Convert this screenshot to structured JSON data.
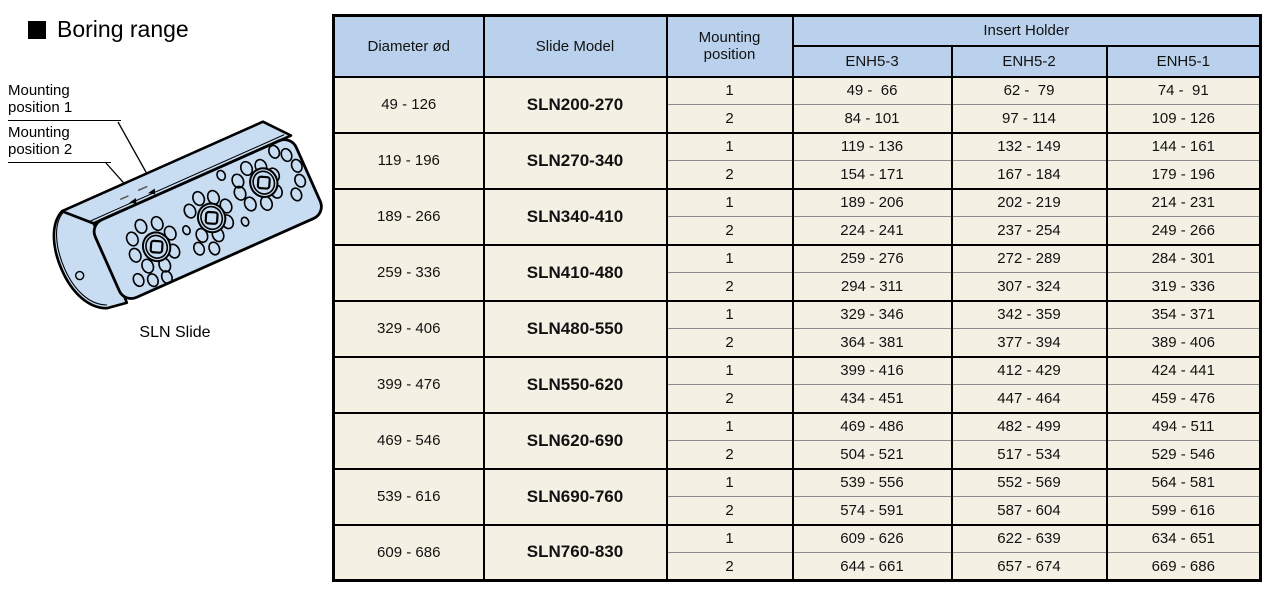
{
  "page": {
    "title": "Boring range"
  },
  "illustration": {
    "caption": "SLN Slide",
    "label_1": "Mounting position 1",
    "label_2": "Mounting position 2",
    "body_color": "#c9ddf2",
    "outline_color": "#000000"
  },
  "table": {
    "headers": {
      "diameter": "Diameter ød",
      "slide_model": "Slide Model",
      "mounting_position": "Mounting position",
      "insert_holder": "Insert Holder",
      "insert_columns": [
        "ENH5-3",
        "ENH5-2",
        "ENH5-1"
      ]
    },
    "colors": {
      "header_bg": "#b9d1ec",
      "model_bg": "#d6eaf8",
      "cell_bg": "#f4f1e4"
    },
    "rows": [
      {
        "diameter": "49 - 126",
        "model": "SLN200-270",
        "positions": [
          {
            "label": "1",
            "values": [
              "49 -  66",
              "62 -  79",
              "74 -  91"
            ]
          },
          {
            "label": "2",
            "values": [
              "84 - 101",
              "97 - 114",
              "109 - 126"
            ]
          }
        ]
      },
      {
        "diameter": "119 - 196",
        "model": "SLN270-340",
        "positions": [
          {
            "label": "1",
            "values": [
              "119 - 136",
              "132 - 149",
              "144 - 161"
            ]
          },
          {
            "label": "2",
            "values": [
              "154 - 171",
              "167 - 184",
              "179 - 196"
            ]
          }
        ]
      },
      {
        "diameter": "189 - 266",
        "model": "SLN340-410",
        "positions": [
          {
            "label": "1",
            "values": [
              "189 - 206",
              "202 - 219",
              "214 - 231"
            ]
          },
          {
            "label": "2",
            "values": [
              "224 - 241",
              "237 - 254",
              "249 - 266"
            ]
          }
        ]
      },
      {
        "diameter": "259 - 336",
        "model": "SLN410-480",
        "positions": [
          {
            "label": "1",
            "values": [
              "259 - 276",
              "272 - 289",
              "284 - 301"
            ]
          },
          {
            "label": "2",
            "values": [
              "294 - 311",
              "307 - 324",
              "319 - 336"
            ]
          }
        ]
      },
      {
        "diameter": "329 - 406",
        "model": "SLN480-550",
        "positions": [
          {
            "label": "1",
            "values": [
              "329 - 346",
              "342 - 359",
              "354 - 371"
            ]
          },
          {
            "label": "2",
            "values": [
              "364 - 381",
              "377 - 394",
              "389 - 406"
            ]
          }
        ]
      },
      {
        "diameter": "399 - 476",
        "model": "SLN550-620",
        "positions": [
          {
            "label": "1",
            "values": [
              "399 - 416",
              "412 - 429",
              "424 - 441"
            ]
          },
          {
            "label": "2",
            "values": [
              "434 - 451",
              "447 - 464",
              "459 - 476"
            ]
          }
        ]
      },
      {
        "diameter": "469 - 546",
        "model": "SLN620-690",
        "positions": [
          {
            "label": "1",
            "values": [
              "469 - 486",
              "482 - 499",
              "494 - 511"
            ]
          },
          {
            "label": "2",
            "values": [
              "504 - 521",
              "517 - 534",
              "529 - 546"
            ]
          }
        ]
      },
      {
        "diameter": "539 - 616",
        "model": "SLN690-760",
        "positions": [
          {
            "label": "1",
            "values": [
              "539 - 556",
              "552 - 569",
              "564 - 581"
            ]
          },
          {
            "label": "2",
            "values": [
              "574 - 591",
              "587 - 604",
              "599 - 616"
            ]
          }
        ]
      },
      {
        "diameter": "609 - 686",
        "model": "SLN760-830",
        "positions": [
          {
            "label": "1",
            "values": [
              "609 - 626",
              "622 - 639",
              "634 - 651"
            ]
          },
          {
            "label": "2",
            "values": [
              "644 - 661",
              "657 - 674",
              "669 - 686"
            ]
          }
        ]
      }
    ]
  }
}
